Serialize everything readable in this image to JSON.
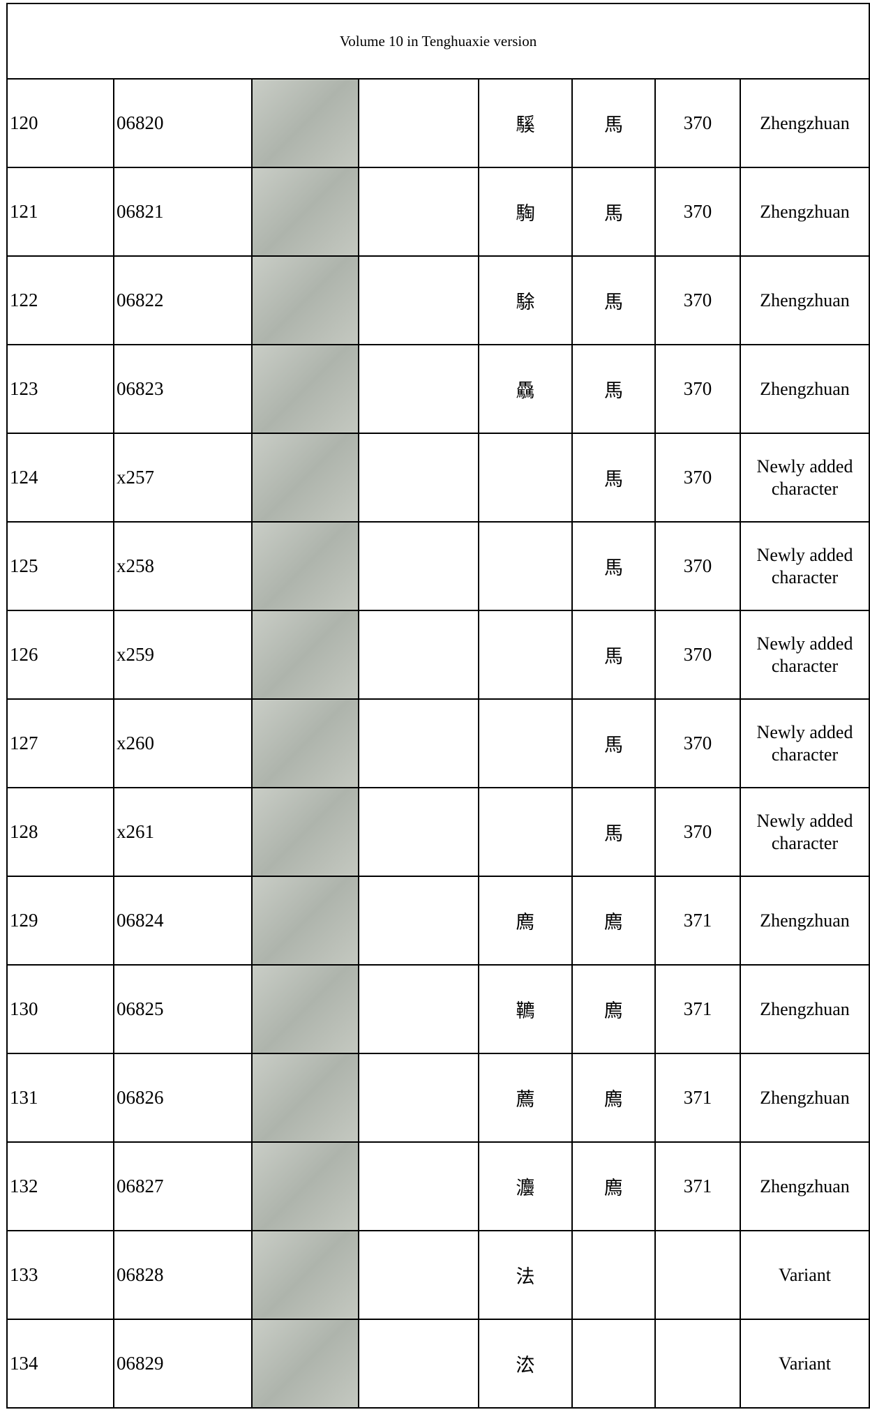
{
  "header": {
    "title": "Volume 10 in Tenghuaxie version"
  },
  "table": {
    "rows": [
      {
        "no": 120,
        "code": "06820",
        "modern": "騱",
        "radical": "馬",
        "page": 370,
        "type": "Zhengzhuan"
      },
      {
        "no": 121,
        "code": "06821",
        "modern": "騊",
        "radical": "馬",
        "page": 370,
        "type": "Zhengzhuan"
      },
      {
        "no": 122,
        "code": "06822",
        "modern": "駼",
        "radical": "馬",
        "page": 370,
        "type": "Zhengzhuan"
      },
      {
        "no": 123,
        "code": "06823",
        "modern": "驫",
        "radical": "馬",
        "page": 370,
        "type": "Zhengzhuan"
      },
      {
        "no": 124,
        "code": "x257",
        "radical": "馬",
        "page": 370,
        "type": "Newly added character"
      },
      {
        "no": 125,
        "code": "x258",
        "radical": "馬",
        "page": 370,
        "type": "Newly added character"
      },
      {
        "no": 126,
        "code": "x259",
        "radical": "馬",
        "page": 370,
        "type": "Newly added character"
      },
      {
        "no": 127,
        "code": "x260",
        "radical": "馬",
        "page": 370,
        "type": "Newly added character"
      },
      {
        "no": 128,
        "code": "x261",
        "radical": "馬",
        "page": 370,
        "type": "Newly added character"
      },
      {
        "no": 129,
        "code": "06824",
        "modern": "廌",
        "radical": "廌",
        "page": 371,
        "type": "Zhengzhuan"
      },
      {
        "no": 130,
        "code": "06825",
        "modern": "韀",
        "radical": "廌",
        "page": 371,
        "type": "Zhengzhuan"
      },
      {
        "no": 131,
        "code": "06826",
        "modern": "薦",
        "radical": "廌",
        "page": 371,
        "type": "Zhengzhuan"
      },
      {
        "no": 132,
        "code": "06827",
        "modern": "灋",
        "radical": "廌",
        "page": 371,
        "type": "Zhengzhuan"
      },
      {
        "no": 133,
        "code": "06828",
        "modern": "法",
        "type": "Variant"
      },
      {
        "no": 134,
        "code": "06829",
        "modern": "㳒",
        "type": "Variant"
      }
    ]
  }
}
